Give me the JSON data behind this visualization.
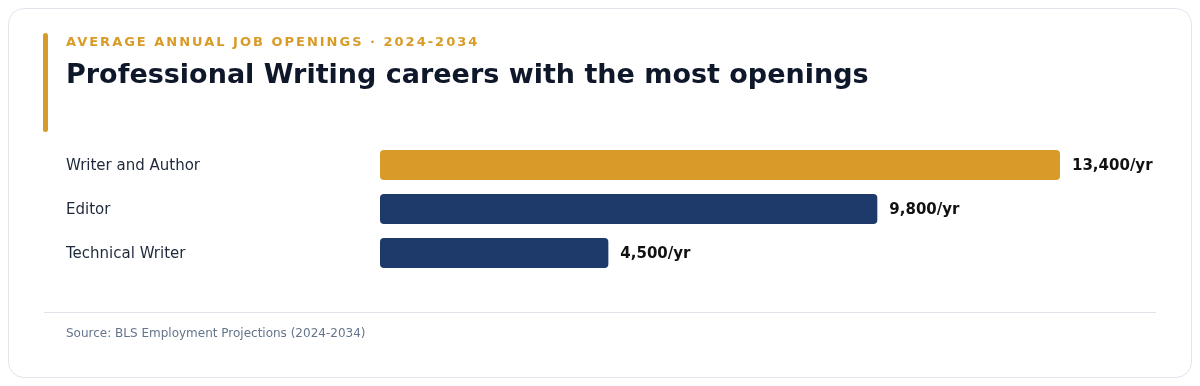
{
  "chart_data": {
    "type": "bar",
    "orientation": "horizontal",
    "subtitle": "AVERAGE ANNUAL JOB OPENINGS · 2024-2034",
    "title": "Professional Writing careers with the most openings",
    "categories": [
      "Writer and Author",
      "Editor",
      "Technical Writer"
    ],
    "values": [
      13400,
      9800,
      4500
    ],
    "colors": [
      "#d99b27",
      "#1d3a6b",
      "#1d3a6b"
    ],
    "value_labels": [
      "13,400/yr",
      "9,800/yr",
      "4,500/yr"
    ],
    "annotations": [
      "Source: BLS Employment Projections (2024-2034)"
    ]
  }
}
